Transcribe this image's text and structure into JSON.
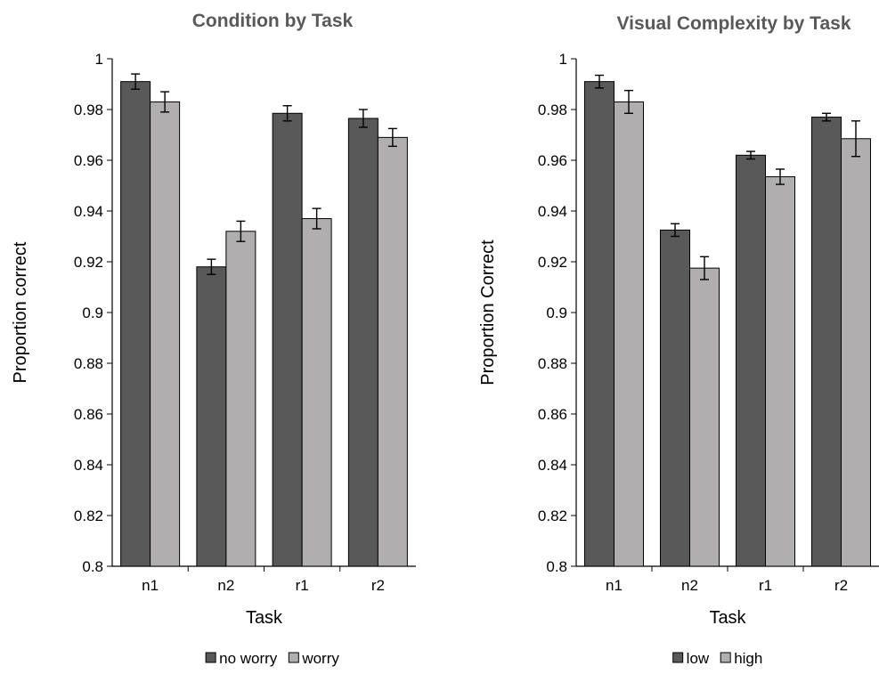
{
  "chart_data": [
    {
      "type": "bar",
      "title": "Condition by Task",
      "xlabel": "Task",
      "ylabel": "Proportion correct",
      "categories": [
        "n1",
        "n2",
        "r1",
        "r2"
      ],
      "ylim": [
        0.8,
        1
      ],
      "yticks": [
        "0.8",
        "0.82",
        "0.84",
        "0.86",
        "0.88",
        "0.9",
        "0.92",
        "0.94",
        "0.96",
        "0.98",
        "1"
      ],
      "grid": false,
      "legend_position": "bottom",
      "series": [
        {
          "name": "no worry",
          "color": "#595959",
          "values": [
            0.991,
            0.918,
            0.9785,
            0.9765
          ],
          "errors": [
            0.003,
            0.003,
            0.003,
            0.0035
          ]
        },
        {
          "name": "worry",
          "color": "#b0aeae",
          "values": [
            0.983,
            0.932,
            0.937,
            0.969
          ],
          "errors": [
            0.004,
            0.004,
            0.004,
            0.0035
          ]
        }
      ]
    },
    {
      "type": "bar",
      "title": "Visual Complexity by Task",
      "xlabel": "Task",
      "ylabel": "Proportion Correct",
      "categories": [
        "n1",
        "n2",
        "r1",
        "r2"
      ],
      "ylim": [
        0.8,
        1
      ],
      "yticks": [
        "0.8",
        "0.82",
        "0.84",
        "0.86",
        "0.88",
        "0.9",
        "0.92",
        "0.94",
        "0.96",
        "0.98",
        "1"
      ],
      "grid": false,
      "legend_position": "bottom",
      "series": [
        {
          "name": "low",
          "color": "#595959",
          "values": [
            0.991,
            0.9325,
            0.962,
            0.977
          ],
          "errors": [
            0.0025,
            0.0025,
            0.0015,
            0.0015
          ]
        },
        {
          "name": "high",
          "color": "#b0aeae",
          "values": [
            0.983,
            0.9175,
            0.9535,
            0.9685
          ],
          "errors": [
            0.0045,
            0.0045,
            0.003,
            0.007
          ]
        }
      ]
    }
  ]
}
